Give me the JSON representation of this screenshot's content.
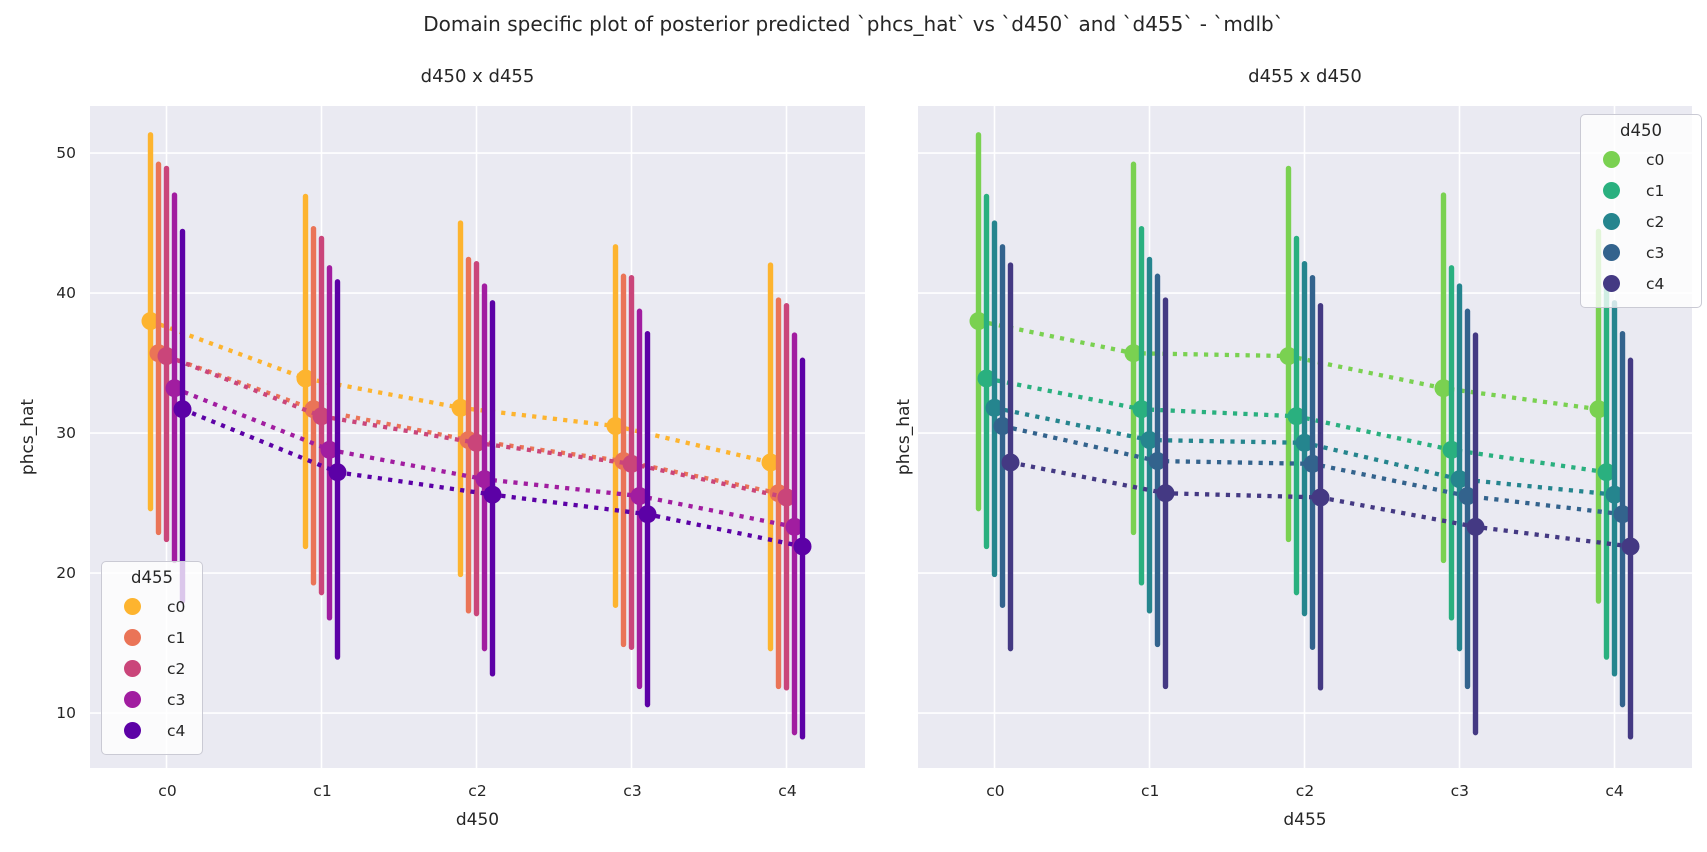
{
  "figure": {
    "title": "Domain specific plot of posterior predicted `phcs_hat` vs `d450` and `d455` - `mdlb`",
    "background": "#ffffff",
    "axes_background": "#eaeaf2",
    "grid_color": "#ffffff",
    "text_color": "#262626"
  },
  "chart_data": {
    "type": "scatter",
    "description": "Two categorical point plots with dotted trend lines and vertical credible-interval bars. Cell [i][j] of each matrix is the value for d450=level i, d455=level j. Left subplot: x=d450, hue=d455 (value=means[x][hue]). Right subplot: x=d455, hue=d450 (value=means[hue][x]).",
    "levels": [
      "c0",
      "c1",
      "c2",
      "c3",
      "c4"
    ],
    "value_label": "phcs_hat",
    "ylim": [
      6.1,
      53.4
    ],
    "yticks": [
      50,
      40,
      30,
      20,
      10
    ],
    "grid": true,
    "means": [
      [
        38.0,
        35.7,
        35.5,
        33.2,
        31.7
      ],
      [
        33.9,
        31.7,
        31.2,
        28.8,
        27.2
      ],
      [
        31.8,
        29.5,
        29.3,
        26.7,
        25.6
      ],
      [
        30.5,
        28.0,
        27.8,
        25.5,
        24.2
      ],
      [
        27.9,
        25.7,
        25.4,
        23.3,
        21.9
      ]
    ],
    "ci_high": [
      [
        51.3,
        49.2,
        48.9,
        47.0,
        44.4
      ],
      [
        46.9,
        44.6,
        43.9,
        41.8,
        40.8
      ],
      [
        45.0,
        42.4,
        42.1,
        40.5,
        39.3
      ],
      [
        43.3,
        41.2,
        41.1,
        38.7,
        37.1
      ],
      [
        42.0,
        39.5,
        39.1,
        37.0,
        35.2
      ]
    ],
    "ci_low": [
      [
        24.6,
        22.9,
        22.4,
        20.9,
        18.0
      ],
      [
        21.9,
        19.3,
        18.6,
        16.8,
        14.0
      ],
      [
        19.9,
        17.3,
        17.1,
        14.6,
        12.8
      ],
      [
        17.7,
        14.9,
        14.7,
        11.9,
        10.6
      ],
      [
        14.6,
        11.9,
        11.8,
        8.6,
        8.3
      ]
    ],
    "palettes": {
      "d455": [
        "#fdb42f",
        "#ea7457",
        "#ca457a",
        "#a11da0",
        "#5c01a6"
      ],
      "d450": [
        "#7ad151",
        "#2ab07f",
        "#25858e",
        "#33638d",
        "#443983"
      ]
    },
    "subplots": [
      {
        "title": "d450 x d455",
        "xlabel": "d450",
        "ylabel": "phcs_hat",
        "x_var": "d450",
        "hue_var": "d455",
        "legend": {
          "title": "d455",
          "position": "lower-left",
          "entries": [
            "c0",
            "c1",
            "c2",
            "c3",
            "c4"
          ]
        }
      },
      {
        "title": "d455 x d450",
        "xlabel": "d455",
        "ylabel": "phcs_hat",
        "x_var": "d455",
        "hue_var": "d450",
        "legend": {
          "title": "d450",
          "position": "upper-right",
          "entries": [
            "c0",
            "c1",
            "c2",
            "c3",
            "c4"
          ]
        }
      }
    ]
  }
}
